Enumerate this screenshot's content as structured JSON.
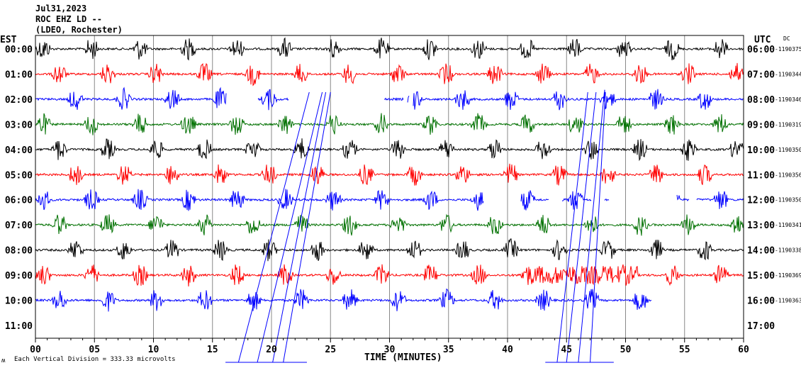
{
  "header": {
    "date": "Jul31,2023",
    "station": "ROC EHZ LD --",
    "network": "(LDEO, Rochester)",
    "left_tz": "EST",
    "right_tz": "UTC",
    "dc_label": "DC"
  },
  "footer": {
    "xlabel": "TIME (MINUTES)",
    "scale_note": "Each Vertical Division =  333.33 microvolts",
    "corner_mark": "ʍ"
  },
  "chart_data": {
    "type": "line",
    "title": "ROC EHZ LD -- (LDEO, Rochester) Jul31,2023",
    "xlabel": "TIME (MINUTES)",
    "xlim": [
      0,
      60
    ],
    "x_ticks": [
      "00",
      "05",
      "10",
      "15",
      "20",
      "25",
      "30",
      "35",
      "40",
      "45",
      "50",
      "55",
      "60"
    ],
    "grid": true,
    "colors": [
      "#000000",
      "#ff0000",
      "#0000ff",
      "#007000"
    ],
    "rows": [
      {
        "est": "00:00",
        "utc": "06:00",
        "dc": "-1190375",
        "color": "#000000",
        "end_min": 60,
        "gaps": []
      },
      {
        "est": "01:00",
        "utc": "07:00",
        "dc": "-1190344",
        "color": "#ff0000",
        "end_min": 60,
        "gaps": []
      },
      {
        "est": "02:00",
        "utc": "08:00",
        "dc": "-1190346",
        "color": "#0000ff",
        "end_min": 60,
        "gaps": [
          [
            16.2,
            18.8
          ],
          [
            21.5,
            29.5
          ],
          [
            31.2,
            31.5
          ],
          [
            31.7,
            32.0
          ]
        ]
      },
      {
        "est": "03:00",
        "utc": "09:00",
        "dc": "-1190319",
        "color": "#007000",
        "end_min": 60,
        "gaps": []
      },
      {
        "est": "04:00",
        "utc": "10:00",
        "dc": "-1190350",
        "color": "#000000",
        "end_min": 60,
        "gaps": []
      },
      {
        "est": "05:00",
        "utc": "11:00",
        "dc": "-1190356",
        "color": "#ff0000",
        "end_min": 60,
        "gaps": []
      },
      {
        "est": "06:00",
        "utc": "12:00",
        "dc": "-1190350",
        "color": "#0000ff",
        "end_min": 60,
        "gaps": [
          [
            38.0,
            41.1
          ],
          [
            43.5,
            44.6
          ],
          [
            47.1,
            48.2
          ],
          [
            48.6,
            54.3
          ],
          [
            55.4,
            56.0
          ]
        ]
      },
      {
        "est": "07:00",
        "utc": "13:00",
        "dc": "-1190341",
        "color": "#007000",
        "end_min": 60,
        "gaps": []
      },
      {
        "est": "08:00",
        "utc": "14:00",
        "dc": "-1190338",
        "color": "#000000",
        "end_min": 60,
        "gaps": []
      },
      {
        "est": "09:00",
        "utc": "15:00",
        "dc": "-1190369",
        "color": "#ff0000",
        "end_min": 60,
        "gaps": []
      },
      {
        "est": "10:00",
        "utc": "16:00",
        "dc": "-1190363",
        "color": "#0000ff",
        "end_min": 52.2,
        "gaps": []
      },
      {
        "est": "11:00",
        "utc": "17:00",
        "dc": "",
        "color": "#000000",
        "end_min": 0,
        "gaps": []
      }
    ],
    "event_interval_min": 4.1,
    "scale_microvolts_per_division": 333.33
  }
}
